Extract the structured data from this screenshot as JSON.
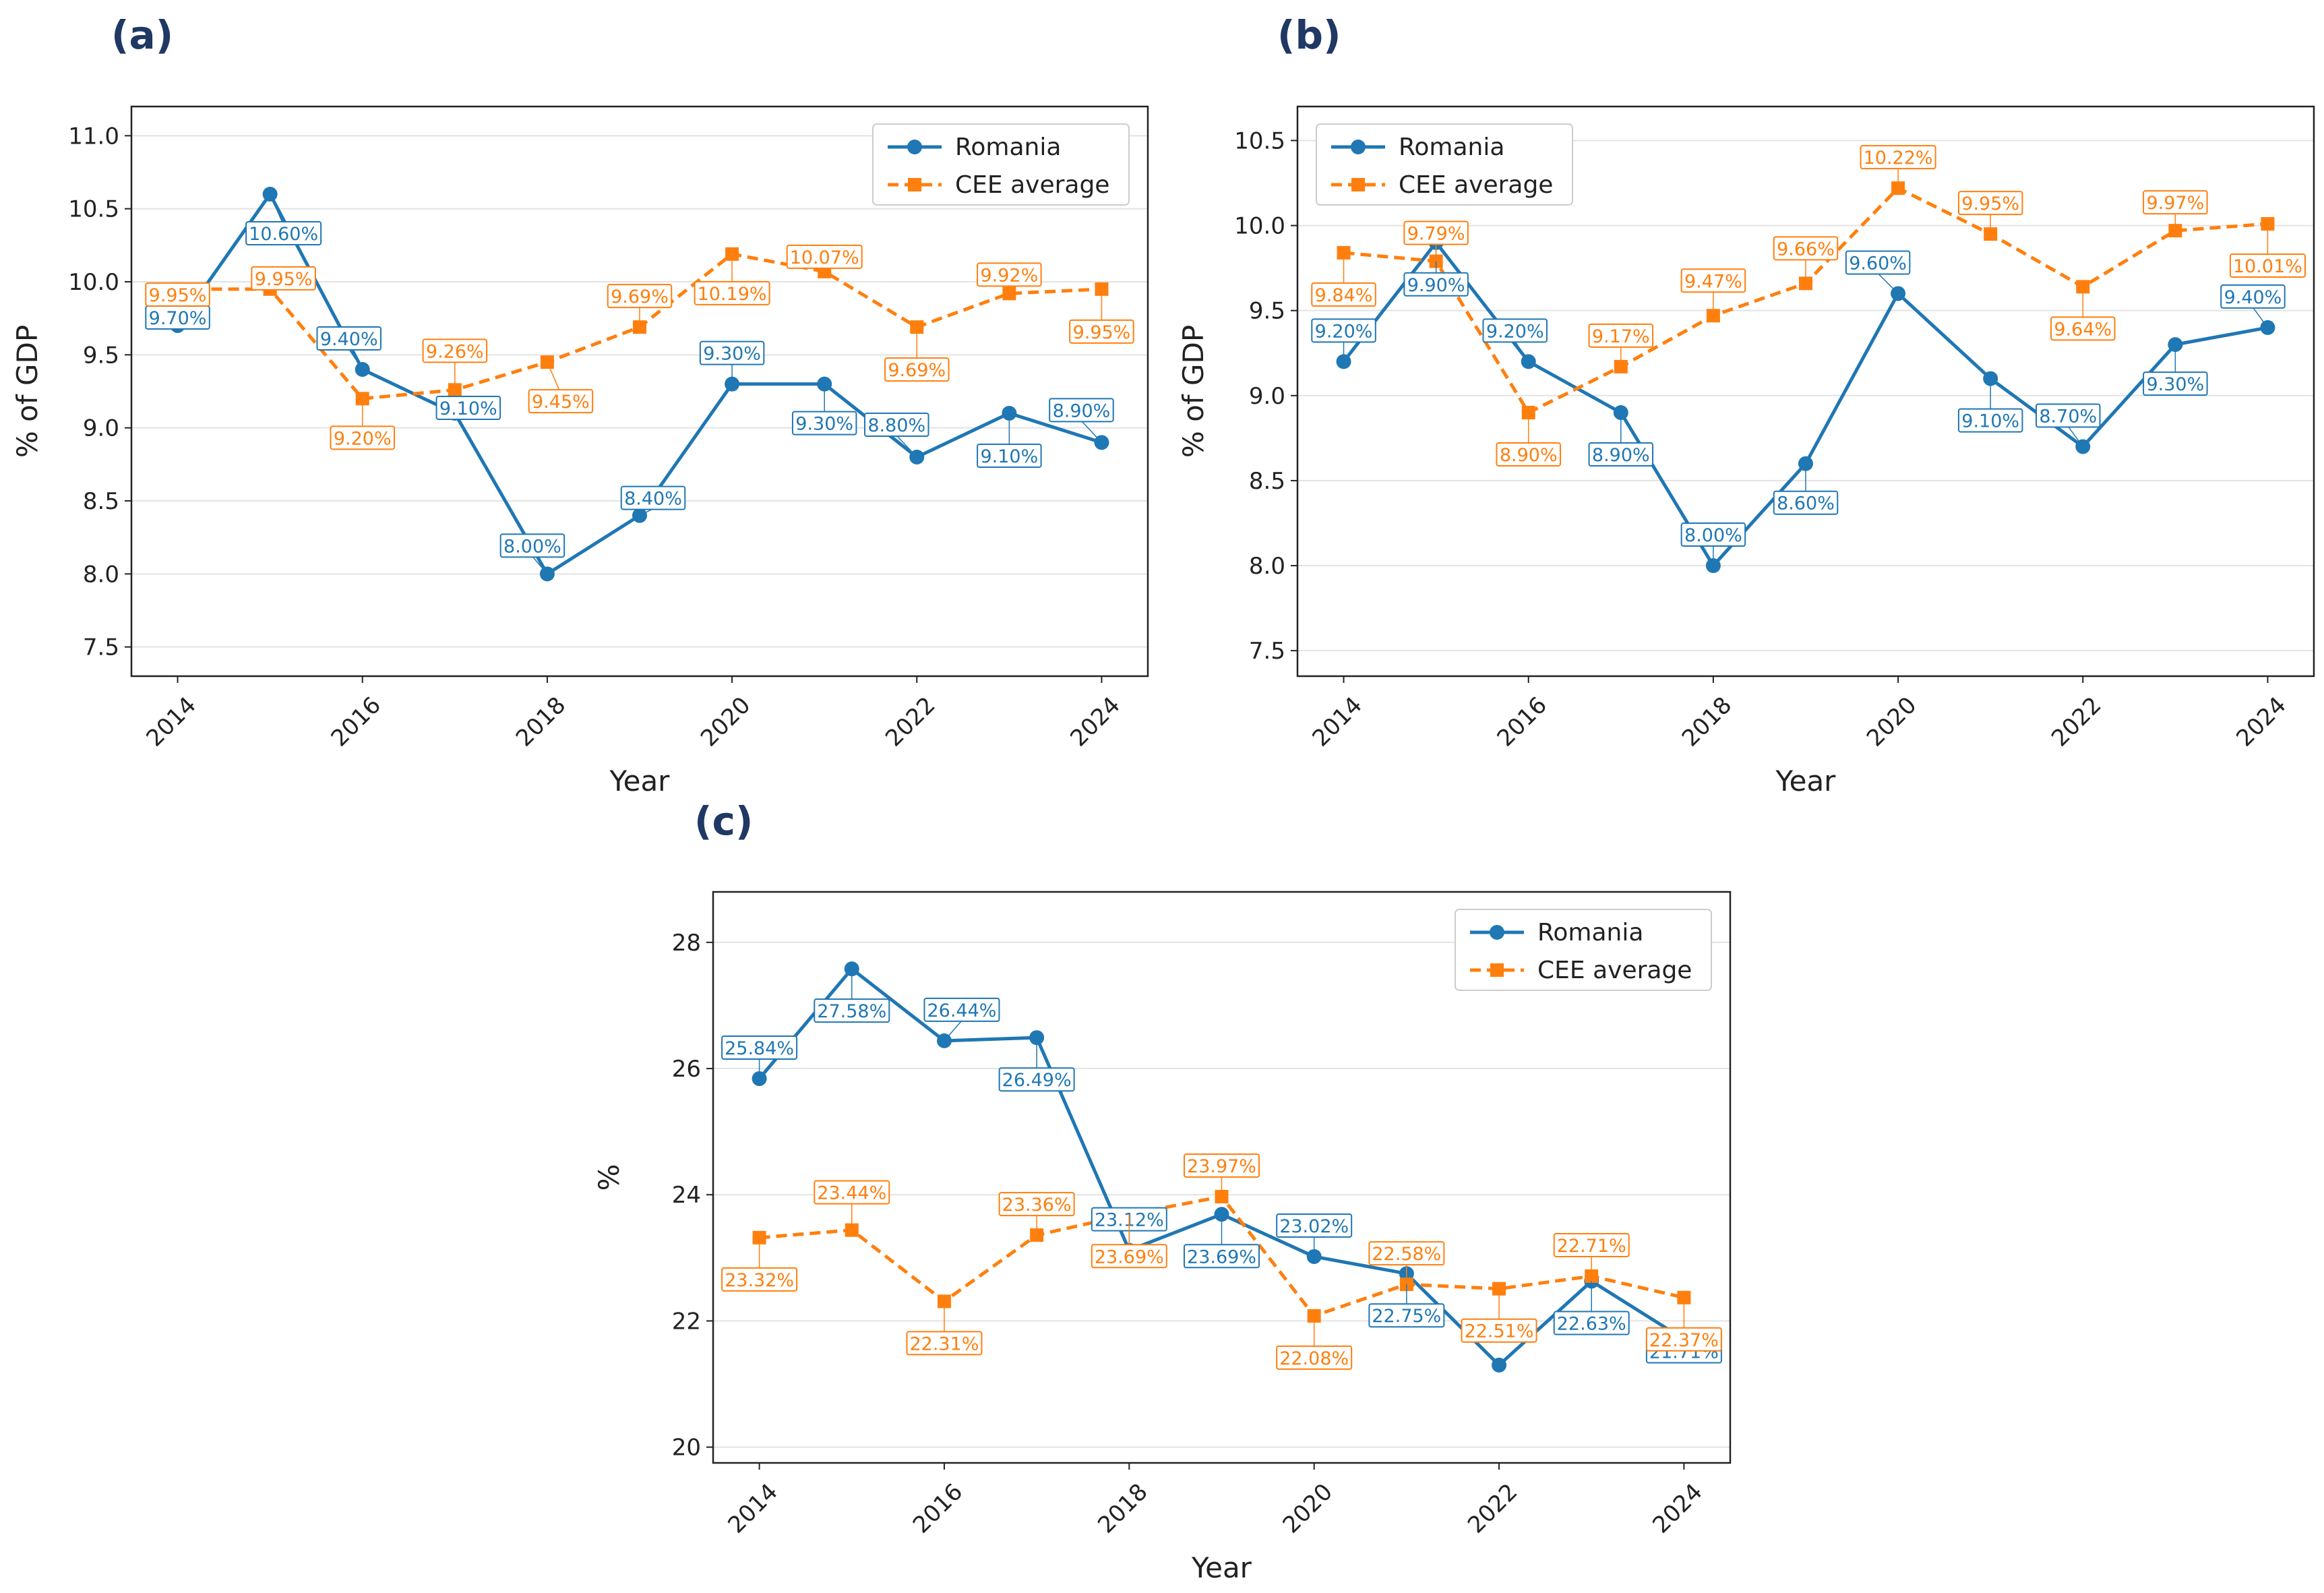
{
  "colors": {
    "romania": "#1f77b4",
    "cee": "#ff7f0e",
    "panel_letter": "#1f3864"
  },
  "chart_data": [
    {
      "panel": "(a)",
      "type": "line",
      "xlabel": "Year",
      "ylabel": "% of GDP",
      "xlim": [
        2013.5,
        2024.5
      ],
      "ylim": [
        7.3,
        11.2
      ],
      "xticks": [
        "2014",
        "2016",
        "2018",
        "2020",
        "2022",
        "2024"
      ],
      "yticks": [
        "7.5",
        "8.0",
        "8.5",
        "9.0",
        "9.5",
        "10.0",
        "10.5",
        "11.0"
      ],
      "legend": "top-right",
      "grid": "horizontal",
      "x": [
        2014,
        2015,
        2016,
        2017,
        2018,
        2019,
        2020,
        2021,
        2022,
        2023,
        2024
      ],
      "series": [
        {
          "name": "Romania",
          "values": [
            9.7,
            10.6,
            9.4,
            9.1,
            8.0,
            8.4,
            9.3,
            9.3,
            8.8,
            9.1,
            8.9
          ],
          "labels": [
            "9.70%",
            "10.60%",
            "9.40%",
            "9.10%",
            "8.00%",
            "8.40%",
            "9.30%",
            "9.30%",
            "8.80%",
            "9.10%",
            "8.90%"
          ]
        },
        {
          "name": "CEE average",
          "values": [
            9.95,
            9.95,
            9.2,
            9.26,
            9.45,
            9.69,
            10.19,
            10.07,
            9.69,
            9.92,
            9.95
          ],
          "labels": [
            "9.95%",
            "9.95%",
            "9.20%",
            "9.26%",
            "9.45%",
            "9.69%",
            "10.19%",
            "10.07%",
            "9.69%",
            "9.92%",
            "9.95%"
          ]
        }
      ]
    },
    {
      "panel": "(b)",
      "type": "line",
      "xlabel": "Year",
      "ylabel": "% of GDP",
      "xlim": [
        2013.5,
        2024.5
      ],
      "ylim": [
        7.35,
        10.7
      ],
      "xticks": [
        "2014",
        "2016",
        "2018",
        "2020",
        "2022",
        "2024"
      ],
      "yticks": [
        "7.5",
        "8.0",
        "8.5",
        "9.0",
        "9.5",
        "10.0",
        "10.5"
      ],
      "legend": "top-left",
      "grid": "horizontal",
      "x": [
        2014,
        2015,
        2016,
        2017,
        2018,
        2019,
        2020,
        2021,
        2022,
        2023,
        2024
      ],
      "series": [
        {
          "name": "Romania",
          "values": [
            9.2,
            9.9,
            9.2,
            8.9,
            8.0,
            8.6,
            9.6,
            9.1,
            8.7,
            9.3,
            9.4
          ],
          "labels": [
            "9.20%",
            "9.90%",
            "9.20%",
            "8.90%",
            "8.00%",
            "8.60%",
            "9.60%",
            "9.10%",
            "8.70%",
            "9.30%",
            "9.40%"
          ]
        },
        {
          "name": "CEE average",
          "values": [
            9.84,
            9.79,
            8.9,
            9.17,
            9.47,
            9.66,
            10.22,
            9.95,
            9.64,
            9.97,
            10.01
          ],
          "labels": [
            "9.84%",
            "9.79%",
            "8.90%",
            "9.17%",
            "9.47%",
            "9.66%",
            "10.22%",
            "9.95%",
            "9.64%",
            "9.97%",
            "10.01%"
          ]
        }
      ]
    },
    {
      "panel": "(c)",
      "type": "line",
      "xlabel": "Year",
      "ylabel": "%",
      "xlim": [
        2013.5,
        2024.5
      ],
      "ylim": [
        19.75,
        28.8
      ],
      "xticks": [
        "2014",
        "2016",
        "2018",
        "2020",
        "2022",
        "2024"
      ],
      "yticks": [
        "20",
        "22",
        "24",
        "26",
        "28"
      ],
      "legend": "top-right",
      "grid": "horizontal",
      "x": [
        2014,
        2015,
        2016,
        2017,
        2018,
        2019,
        2020,
        2021,
        2022,
        2023,
        2024
      ],
      "series": [
        {
          "name": "Romania",
          "values": [
            25.84,
            27.58,
            26.44,
            26.49,
            23.12,
            23.69,
            23.02,
            22.75,
            21.3,
            22.63,
            21.71
          ],
          "labels": [
            "25.84%",
            "27.58%",
            "26.44%",
            "26.49%",
            "23.12%",
            "23.69%",
            "23.02%",
            "22.75%",
            "",
            "22.63%",
            "21.71%"
          ]
        },
        {
          "name": "CEE average",
          "values": [
            23.32,
            23.44,
            22.31,
            23.36,
            23.69,
            23.97,
            22.08,
            22.58,
            22.51,
            22.71,
            22.37
          ],
          "labels": [
            "23.32%",
            "23.44%",
            "22.31%",
            "23.36%",
            "23.69%",
            "23.97%",
            "22.08%",
            "22.58%",
            "22.51%",
            "22.71%",
            "22.37%"
          ]
        }
      ]
    }
  ]
}
